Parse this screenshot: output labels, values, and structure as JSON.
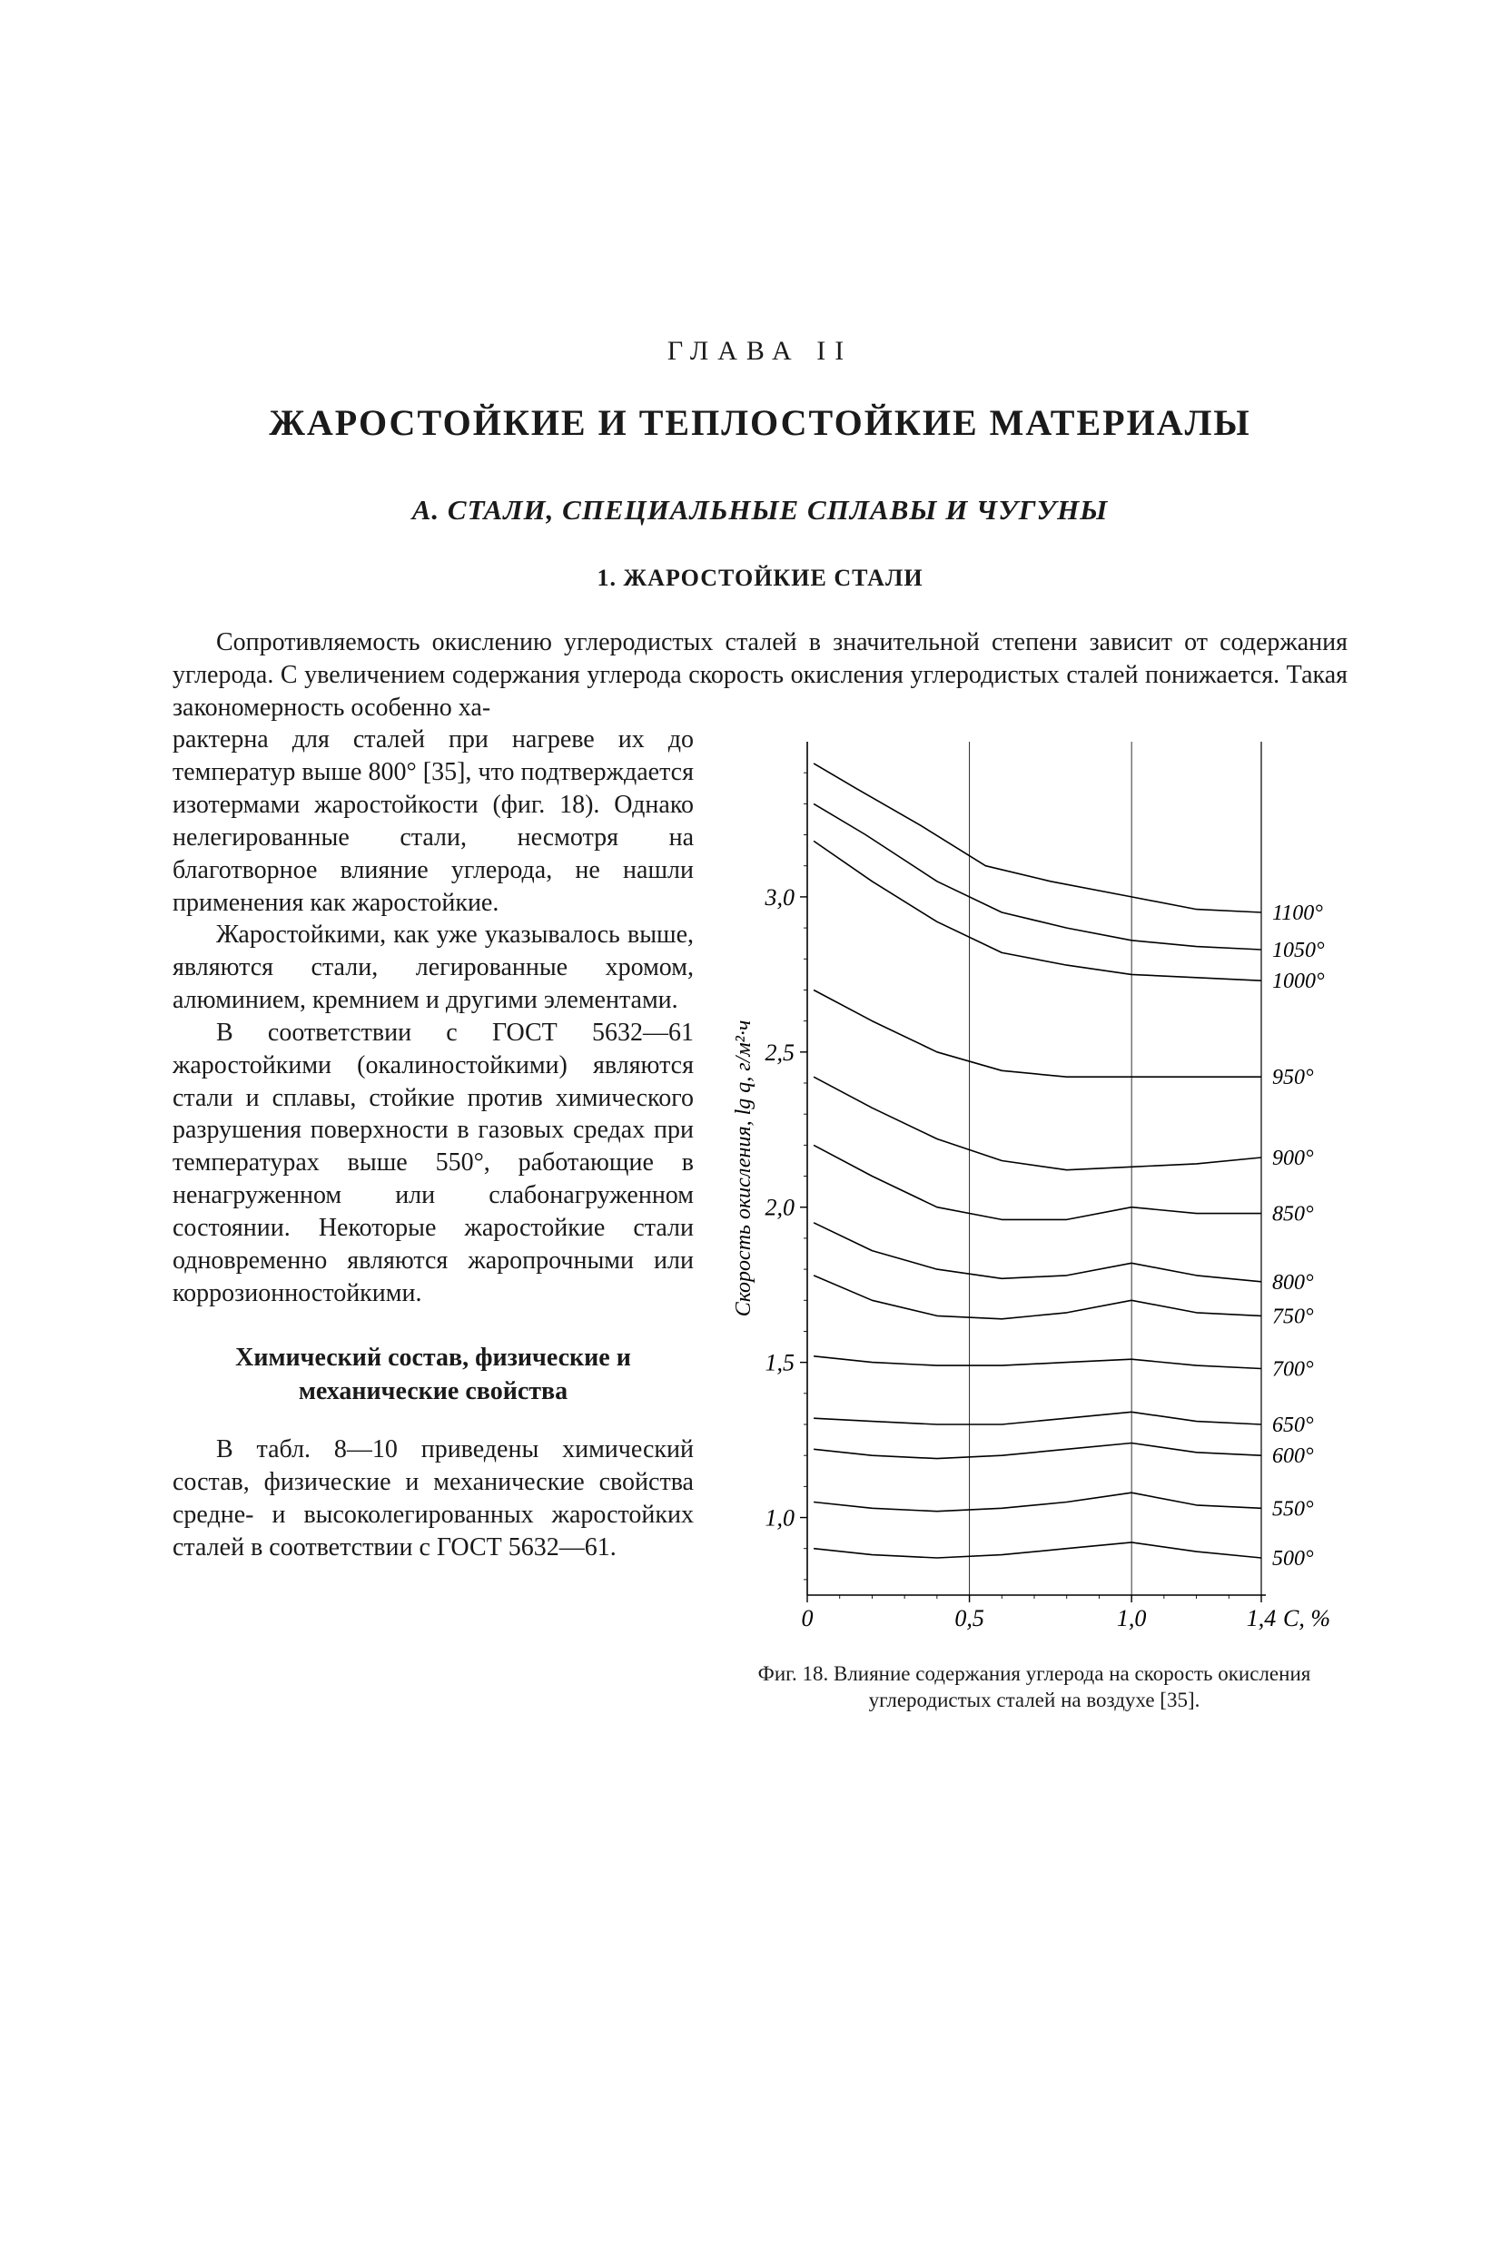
{
  "chapter": "ГЛАВА II",
  "title": "ЖАРОСТОЙКИЕ И ТЕПЛОСТОЙКИЕ МАТЕРИАЛЫ",
  "sectionA": "А. СТАЛИ, СПЕЦИАЛЬНЫЕ СПЛАВЫ И ЧУГУНЫ",
  "section1": "1. ЖАРОСТОЙКИЕ СТАЛИ",
  "intro": "Сопротивляемость окислению углеродистых сталей в значительной степени зависит от содержания углерода. С увеличением содержания углерода скорость окисления углеродистых сталей понижается. Такая закономерность особенно ха-",
  "para1": "рактерна для сталей при нагреве их до температур выше 800° [35], что подтверждается изотермами жаростойкости (фиг. 18). Однако нелегированные стали, несмотря на благотворное влияние углерода, не нашли применения как жаростой­кие.",
  "para2": "Жаростойкими, как уже ука­зывалось выше, являются стали, легированные хромом, алюминием, кремнием и другими элементами.",
  "para3": "В соответствии с ГОСТ 5632—61 жаростойкими (окалиностойкими) являются стали и сплавы, стойкие против химического разрушения по­верхности в газовых средах при температурах выше 550°, работаю­щие в ненагруженном или слабона­груженном состоянии. Некоторые жаростойкие стали одновременно являются жаропрочными или кор­розионностойкими.",
  "subHeading": "Химический состав, физические и механические свойства",
  "para4": "В табл. 8—10 приведены химический состав, физические и механические свойства средне- и высоколегированных жаростой­ких сталей в соответствии с ГОСТ 5632—61.",
  "figure": {
    "type": "line",
    "caption": "Фиг. 18. Влияние содержания углерода на скорость окисления углеродистых сталей на воздухе [35].",
    "x_label": "C, %",
    "y_label": "Скорость окисления, lg q, г/м²·ч",
    "xlim": [
      0,
      1.4
    ],
    "ylim": [
      0.75,
      3.5
    ],
    "x_ticks": [
      0,
      0.5,
      1.0,
      1.4
    ],
    "x_tick_labels": [
      "0",
      "0,5",
      "1,0",
      "1,4"
    ],
    "y_ticks": [
      1.0,
      1.5,
      2.0,
      2.5,
      3.0
    ],
    "y_tick_labels": [
      "1,0",
      "1,5",
      "2,0",
      "2,5",
      "3,0"
    ],
    "grid_x": [
      0.5,
      1.0
    ],
    "background_color": "#ffffff",
    "axis_color": "#000000",
    "grid_color": "#000000",
    "grid_width": 0.8,
    "line_color": "#000000",
    "line_width": 1.6,
    "label_fontsize": 24,
    "tick_fontsize": 26,
    "right_label_fontsize": 24,
    "series": [
      {
        "label": "1100°",
        "points": [
          [
            0.02,
            3.43
          ],
          [
            0.15,
            3.35
          ],
          [
            0.35,
            3.23
          ],
          [
            0.55,
            3.1
          ],
          [
            0.75,
            3.05
          ],
          [
            1.0,
            3.0
          ],
          [
            1.2,
            2.96
          ],
          [
            1.4,
            2.95
          ]
        ]
      },
      {
        "label": "1050°",
        "points": [
          [
            0.02,
            3.3
          ],
          [
            0.18,
            3.2
          ],
          [
            0.4,
            3.05
          ],
          [
            0.6,
            2.95
          ],
          [
            0.8,
            2.9
          ],
          [
            1.0,
            2.86
          ],
          [
            1.2,
            2.84
          ],
          [
            1.4,
            2.83
          ]
        ]
      },
      {
        "label": "1000°",
        "points": [
          [
            0.02,
            3.18
          ],
          [
            0.2,
            3.05
          ],
          [
            0.4,
            2.92
          ],
          [
            0.6,
            2.82
          ],
          [
            0.8,
            2.78
          ],
          [
            1.0,
            2.75
          ],
          [
            1.2,
            2.74
          ],
          [
            1.4,
            2.73
          ]
        ]
      },
      {
        "label": "950°",
        "points": [
          [
            0.02,
            2.7
          ],
          [
            0.2,
            2.6
          ],
          [
            0.4,
            2.5
          ],
          [
            0.6,
            2.44
          ],
          [
            0.8,
            2.42
          ],
          [
            1.0,
            2.42
          ],
          [
            1.2,
            2.42
          ],
          [
            1.4,
            2.42
          ]
        ]
      },
      {
        "label": "900°",
        "points": [
          [
            0.02,
            2.42
          ],
          [
            0.2,
            2.32
          ],
          [
            0.4,
            2.22
          ],
          [
            0.6,
            2.15
          ],
          [
            0.8,
            2.12
          ],
          [
            1.0,
            2.13
          ],
          [
            1.2,
            2.14
          ],
          [
            1.4,
            2.16
          ]
        ]
      },
      {
        "label": "850°",
        "points": [
          [
            0.02,
            2.2
          ],
          [
            0.2,
            2.1
          ],
          [
            0.4,
            2.0
          ],
          [
            0.6,
            1.96
          ],
          [
            0.8,
            1.96
          ],
          [
            1.0,
            2.0
          ],
          [
            1.2,
            1.98
          ],
          [
            1.4,
            1.98
          ]
        ]
      },
      {
        "label": "800°",
        "points": [
          [
            0.02,
            1.95
          ],
          [
            0.2,
            1.86
          ],
          [
            0.4,
            1.8
          ],
          [
            0.6,
            1.77
          ],
          [
            0.8,
            1.78
          ],
          [
            1.0,
            1.82
          ],
          [
            1.2,
            1.78
          ],
          [
            1.4,
            1.76
          ]
        ]
      },
      {
        "label": "750°",
        "points": [
          [
            0.02,
            1.78
          ],
          [
            0.2,
            1.7
          ],
          [
            0.4,
            1.65
          ],
          [
            0.6,
            1.64
          ],
          [
            0.8,
            1.66
          ],
          [
            1.0,
            1.7
          ],
          [
            1.2,
            1.66
          ],
          [
            1.4,
            1.65
          ]
        ]
      },
      {
        "label": "700°",
        "points": [
          [
            0.02,
            1.52
          ],
          [
            0.2,
            1.5
          ],
          [
            0.4,
            1.49
          ],
          [
            0.6,
            1.49
          ],
          [
            0.8,
            1.5
          ],
          [
            1.0,
            1.51
          ],
          [
            1.2,
            1.49
          ],
          [
            1.4,
            1.48
          ]
        ]
      },
      {
        "label": "650°",
        "points": [
          [
            0.02,
            1.32
          ],
          [
            0.2,
            1.31
          ],
          [
            0.4,
            1.3
          ],
          [
            0.6,
            1.3
          ],
          [
            0.8,
            1.32
          ],
          [
            1.0,
            1.34
          ],
          [
            1.2,
            1.31
          ],
          [
            1.4,
            1.3
          ]
        ]
      },
      {
        "label": "600°",
        "points": [
          [
            0.02,
            1.22
          ],
          [
            0.2,
            1.2
          ],
          [
            0.4,
            1.19
          ],
          [
            0.6,
            1.2
          ],
          [
            0.8,
            1.22
          ],
          [
            1.0,
            1.24
          ],
          [
            1.2,
            1.21
          ],
          [
            1.4,
            1.2
          ]
        ]
      },
      {
        "label": "550°",
        "points": [
          [
            0.02,
            1.05
          ],
          [
            0.2,
            1.03
          ],
          [
            0.4,
            1.02
          ],
          [
            0.6,
            1.03
          ],
          [
            0.8,
            1.05
          ],
          [
            1.0,
            1.08
          ],
          [
            1.2,
            1.04
          ],
          [
            1.4,
            1.03
          ]
        ]
      },
      {
        "label": "500°",
        "points": [
          [
            0.02,
            0.9
          ],
          [
            0.2,
            0.88
          ],
          [
            0.4,
            0.87
          ],
          [
            0.6,
            0.88
          ],
          [
            0.8,
            0.9
          ],
          [
            1.0,
            0.92
          ],
          [
            1.2,
            0.89
          ],
          [
            1.4,
            0.87
          ]
        ]
      }
    ]
  }
}
